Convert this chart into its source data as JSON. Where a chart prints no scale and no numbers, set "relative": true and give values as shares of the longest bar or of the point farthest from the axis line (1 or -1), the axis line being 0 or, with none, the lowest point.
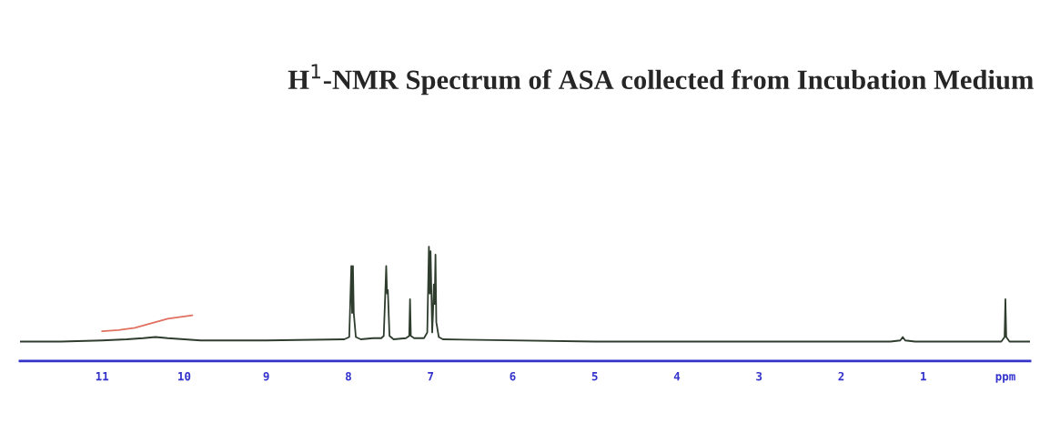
{
  "chart_data": {
    "type": "line",
    "title": "H$^{1}$-NMR Spectrum of ASA collected from Incubation Medium",
    "relative": true,
    "xlim": [
      12.0,
      -0.3
    ],
    "xticks": [
      11,
      10,
      9,
      8,
      7,
      6,
      5,
      4,
      3,
      2,
      1,
      {
        "value": 0,
        "label": "ppm"
      }
    ],
    "tick_labels": "x",
    "grid": false,
    "legend": false,
    "series": [
      {
        "color": "#2f3d2f",
        "x": [
          12.0,
          11.5,
          11.0,
          10.7,
          10.5,
          10.35,
          10.2,
          10.0,
          9.8,
          9.0,
          8.05,
          7.99,
          7.965,
          7.955,
          7.945,
          7.935,
          7.91,
          7.85,
          7.7,
          7.6,
          7.57,
          7.55,
          7.54,
          7.53,
          7.52,
          7.5,
          7.45,
          7.3,
          7.26,
          7.25,
          7.24,
          7.2,
          7.08,
          7.04,
          7.02,
          7.01,
          7.0,
          6.98,
          6.97,
          6.96,
          6.95,
          6.94,
          6.93,
          6.9,
          6.85,
          5.0,
          3.0,
          1.4,
          1.28,
          1.25,
          1.22,
          1.1,
          0.05,
          0.01,
          0.0,
          -0.01,
          -0.05,
          -0.3
        ],
        "values": [
          0.17,
          0.17,
          0.18,
          0.19,
          0.2,
          0.21,
          0.2,
          0.19,
          0.18,
          0.18,
          0.19,
          0.21,
          0.83,
          0.42,
          0.83,
          0.42,
          0.21,
          0.19,
          0.2,
          0.2,
          0.22,
          0.62,
          0.83,
          0.59,
          0.62,
          0.22,
          0.19,
          0.2,
          0.22,
          0.54,
          0.22,
          0.2,
          0.2,
          0.25,
          1.0,
          0.59,
          0.96,
          0.25,
          0.42,
          0.67,
          0.5,
          0.93,
          0.34,
          0.21,
          0.19,
          0.17,
          0.17,
          0.17,
          0.18,
          0.21,
          0.18,
          0.17,
          0.17,
          0.21,
          0.54,
          0.21,
          0.17,
          0.17
        ]
      },
      {
        "color": "#e07060",
        "x": [
          11.0,
          10.8,
          10.6,
          10.4,
          10.2,
          10.0,
          9.9
        ],
        "values": [
          0.26,
          0.27,
          0.29,
          0.33,
          0.37,
          0.39,
          0.4
        ]
      }
    ]
  }
}
